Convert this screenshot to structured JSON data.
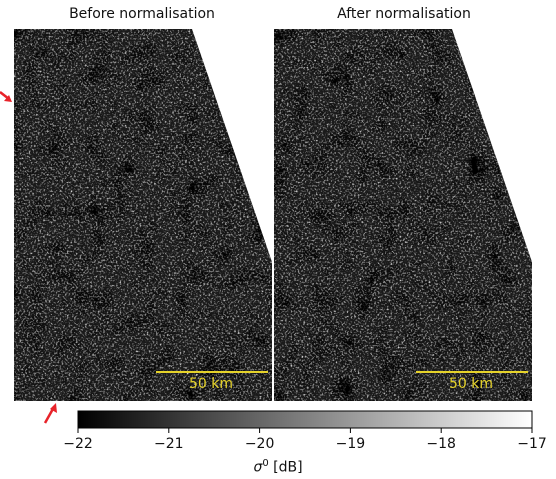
{
  "panels": [
    {
      "title": "Before normalisation",
      "scalebar_label": "50 km"
    },
    {
      "title": "After normalisation",
      "scalebar_label": "50 km"
    }
  ],
  "colorbar": {
    "ticks": [
      "−22",
      "−21",
      "−20",
      "−19",
      "−18",
      "−17"
    ],
    "tick_values": [
      -22,
      -21,
      -20,
      -19,
      -18,
      -17
    ],
    "range": [
      -22,
      -17
    ],
    "label_symbol": "σ",
    "label_superscript": "0",
    "label_unit": " [dB]"
  },
  "colors": {
    "scalebar": "#e6d32a",
    "arrows": "#e8232a",
    "image_base": "#1a1a1a"
  }
}
